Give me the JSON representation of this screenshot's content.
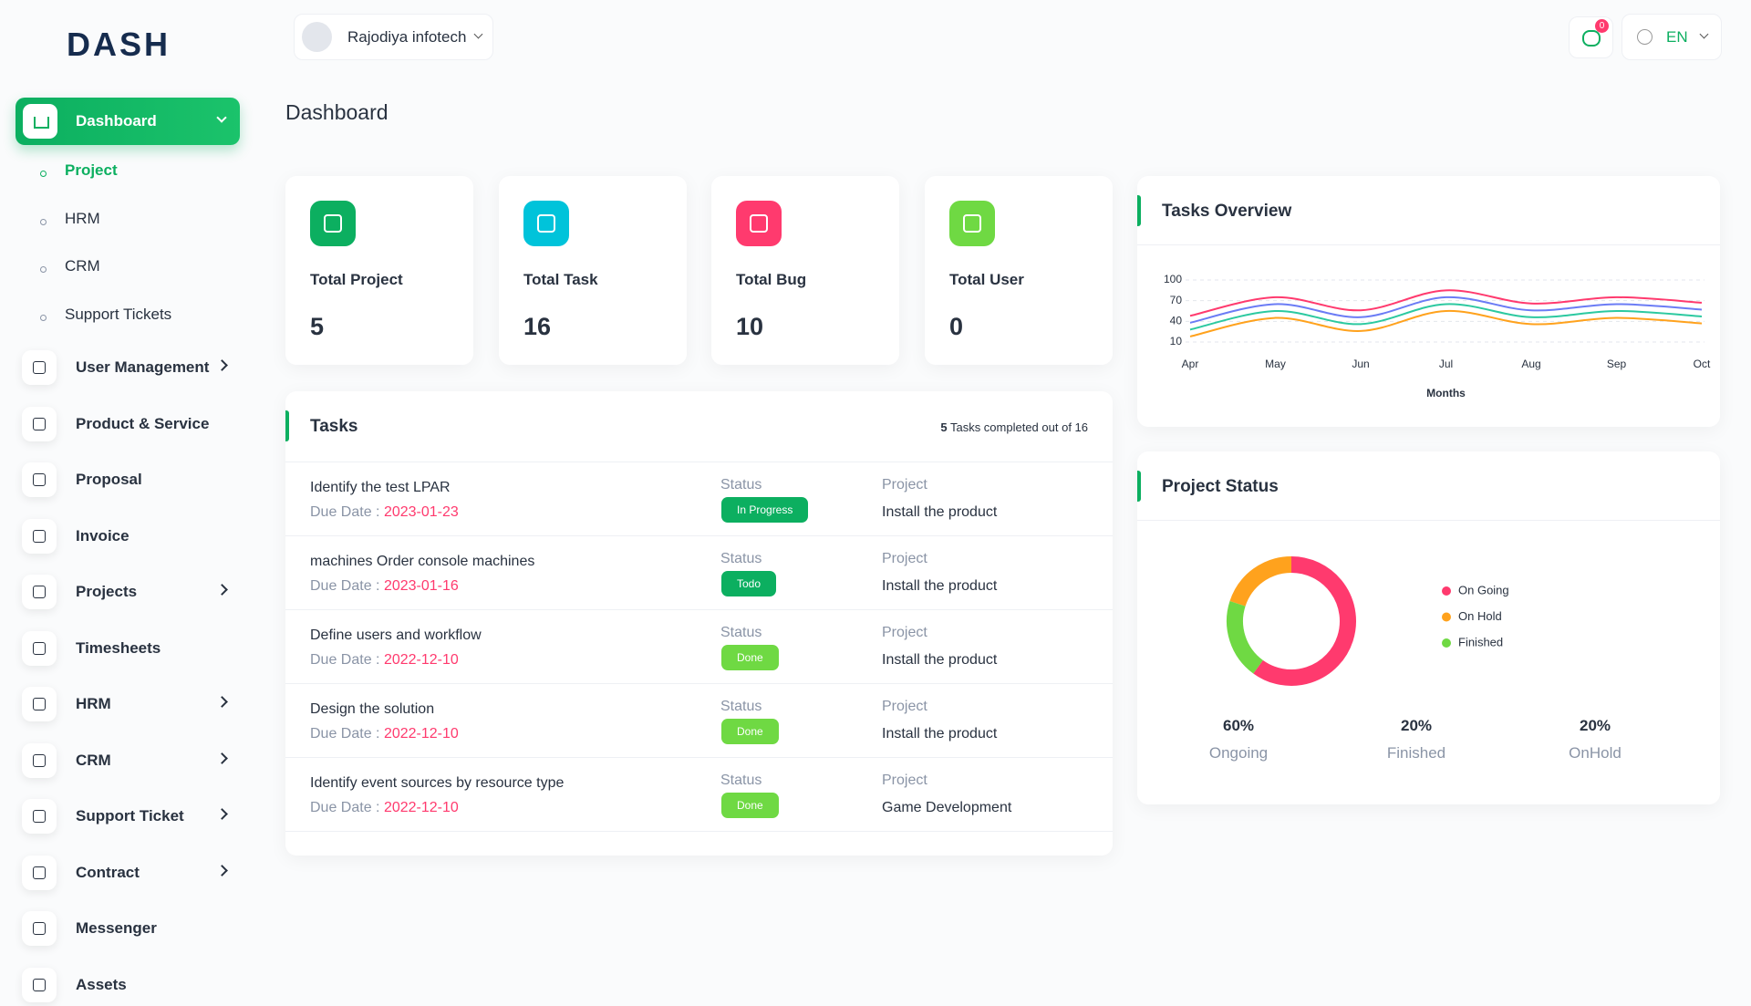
{
  "header": {
    "logo": "DASH",
    "user": "Rajodiya infotech",
    "notifications": "0",
    "language": "EN"
  },
  "page_title": "Dashboard",
  "sidebar": {
    "active": "Dashboard",
    "submenu": [
      "Project",
      "HRM",
      "CRM",
      "Support Tickets"
    ],
    "items": [
      {
        "label": "User Management",
        "has_submenu": true
      },
      {
        "label": "Product & Service",
        "has_submenu": false
      },
      {
        "label": "Proposal",
        "has_submenu": false
      },
      {
        "label": "Invoice",
        "has_submenu": false
      },
      {
        "label": "Projects",
        "has_submenu": true
      },
      {
        "label": "Timesheets",
        "has_submenu": false
      },
      {
        "label": "HRM",
        "has_submenu": true
      },
      {
        "label": "CRM",
        "has_submenu": true
      },
      {
        "label": "Support Ticket",
        "has_submenu": true
      },
      {
        "label": "Contract",
        "has_submenu": true
      },
      {
        "label": "Messenger",
        "has_submenu": false
      },
      {
        "label": "Assets",
        "has_submenu": false
      }
    ]
  },
  "cards": [
    {
      "label": "Total Project",
      "value": "5",
      "color": "#0caf60"
    },
    {
      "label": "Total Task",
      "value": "16",
      "color": "#00c3da"
    },
    {
      "label": "Total Bug",
      "value": "10",
      "color": "#ff3a6e"
    },
    {
      "label": "Total User",
      "value": "0",
      "color": "#6fd943"
    }
  ],
  "tasks": {
    "title": "Tasks",
    "completed": "5",
    "completed_text": "Tasks completed out of 16",
    "rows": [
      {
        "title": "Identify the test LPAR",
        "due_label": "Due Date :",
        "due_date": "2023-01-23",
        "status_label": "Status",
        "status": "In Progress",
        "status_color": "#0caf60",
        "project_label": "Project",
        "project": "Install the product"
      },
      {
        "title": "machines Order console machines",
        "due_label": "Due Date :",
        "due_date": "2023-01-16",
        "status_label": "Status",
        "status": "Todo",
        "status_color": "#0caf60",
        "project_label": "Project",
        "project": "Install the product"
      },
      {
        "title": "Define users and workflow",
        "due_label": "Due Date :",
        "due_date": "2022-12-10",
        "status_label": "Status",
        "status": "Done",
        "status_color": "#6fd943",
        "project_label": "Project",
        "project": "Install the product"
      },
      {
        "title": "Design the solution",
        "due_label": "Due Date :",
        "due_date": "2022-12-10",
        "status_label": "Status",
        "status": "Done",
        "status_color": "#6fd943",
        "project_label": "Project",
        "project": "Install the product"
      },
      {
        "title": "Identify event sources by resource type",
        "due_label": "Due Date :",
        "due_date": "2022-12-10",
        "status_label": "Status",
        "status": "Done",
        "status_color": "#6fd943",
        "project_label": "Project",
        "project": "Game Development"
      }
    ]
  },
  "chart_data": [
    {
      "type": "line",
      "title": "Tasks Overview",
      "x_label": "Months",
      "categories": [
        "Apr",
        "May",
        "Jun",
        "Jul",
        "Aug",
        "Sep",
        "Oct"
      ],
      "series": [
        {
          "color": "#ff3a6e",
          "values": [
            48,
            75,
            56,
            85,
            66,
            75,
            67
          ]
        },
        {
          "color": "#6b7cf5",
          "values": [
            38,
            65,
            46,
            75,
            56,
            65,
            57
          ]
        },
        {
          "color": "#2cc9a0",
          "values": [
            28,
            55,
            36,
            65,
            46,
            55,
            47
          ]
        },
        {
          "color": "#ffa21d",
          "values": [
            18,
            45,
            26,
            55,
            36,
            45,
            37
          ]
        }
      ],
      "ylim": [
        10,
        100
      ],
      "yticks": [
        10,
        40,
        70,
        100
      ],
      "grid": true
    },
    {
      "type": "pie",
      "title": "Project Status",
      "categories": [
        "On Going",
        "On Hold",
        "Finished"
      ],
      "values": [
        60,
        20,
        20
      ],
      "colors": [
        "#ff3a6e",
        "#ffa21d",
        "#6fd943"
      ],
      "donut": true
    }
  ],
  "project_status_summary": [
    {
      "percent": "60%",
      "label": "Ongoing"
    },
    {
      "percent": "20%",
      "label": "Finished"
    },
    {
      "percent": "20%",
      "label": "OnHold"
    }
  ]
}
